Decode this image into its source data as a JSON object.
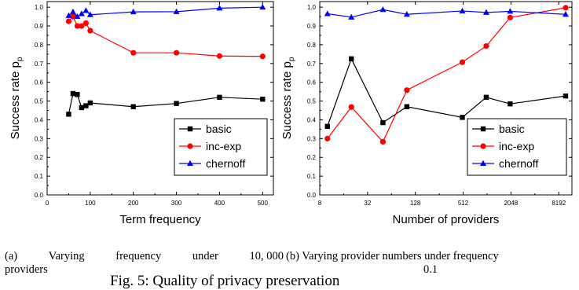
{
  "colors": {
    "basic": "#000000",
    "inc-exp": "#ff0000",
    "chernoff": "#0000ff"
  },
  "chart_data": [
    {
      "type": "line",
      "xlabel": "Term frequency",
      "ylabel": "Success rate p",
      "ylabel_sub": "p",
      "xlim": [
        0,
        525
      ],
      "ylim": [
        0,
        1.03
      ],
      "x_ticks": [
        "0",
        "100",
        "200",
        "300",
        "400",
        "500"
      ],
      "y_ticks": [
        "0.0",
        "0.1",
        "0.2",
        "0.3",
        "0.4",
        "0.5",
        "0.6",
        "0.7",
        "0.8",
        "0.9",
        "1.0"
      ],
      "legend_position": "bottom-right",
      "series": [
        {
          "name": "basic",
          "marker": "square",
          "x": [
            50,
            60,
            70,
            80,
            90,
            100,
            200,
            300,
            400,
            500
          ],
          "y": [
            0.43,
            0.54,
            0.535,
            0.465,
            0.475,
            0.49,
            0.47,
            0.487,
            0.52,
            0.51
          ]
        },
        {
          "name": "inc-exp",
          "marker": "circle",
          "x": [
            50,
            60,
            70,
            80,
            90,
            100,
            200,
            300,
            400,
            500
          ],
          "y": [
            0.925,
            0.95,
            0.9,
            0.9,
            0.915,
            0.875,
            0.757,
            0.757,
            0.74,
            0.738
          ]
        },
        {
          "name": "chernoff",
          "marker": "triangle",
          "x": [
            50,
            60,
            70,
            80,
            90,
            100,
            200,
            300,
            400,
            500
          ],
          "y": [
            0.955,
            0.975,
            0.95,
            0.965,
            0.982,
            0.96,
            0.975,
            0.976,
            0.995,
            1.0
          ]
        }
      ]
    },
    {
      "type": "line",
      "xlabel": "Number of providers",
      "ylabel": "Success rate p",
      "ylabel_sub": "p",
      "x_scale": "log2",
      "xlim": [
        8,
        12000
      ],
      "ylim": [
        0,
        1.03
      ],
      "x_ticks": [
        "8",
        "32",
        "128",
        "512",
        "2048",
        "8192"
      ],
      "y_ticks": [
        "0.0",
        "0.1",
        "0.2",
        "0.3",
        "0.4",
        "0.5",
        "0.6",
        "0.7",
        "0.8",
        "0.9",
        "1.0"
      ],
      "legend_position": "bottom-right",
      "series": [
        {
          "name": "basic",
          "marker": "square",
          "x": [
            10,
            20,
            50,
            100,
            500,
            1000,
            2000,
            10000
          ],
          "y": [
            0.365,
            0.725,
            0.385,
            0.47,
            0.413,
            0.52,
            0.485,
            0.527
          ]
        },
        {
          "name": "inc-exp",
          "marker": "circle",
          "x": [
            10,
            20,
            50,
            100,
            500,
            1000,
            2000,
            10000
          ],
          "y": [
            0.3,
            0.468,
            0.283,
            0.558,
            0.707,
            0.793,
            0.945,
            0.997
          ]
        },
        {
          "name": "chernoff",
          "marker": "triangle",
          "x": [
            10,
            20,
            50,
            100,
            500,
            1000,
            2000,
            10000
          ],
          "y": [
            0.965,
            0.947,
            0.987,
            0.962,
            0.98,
            0.972,
            0.978,
            0.962
          ]
        }
      ]
    }
  ],
  "captions": {
    "a_row1_words": [
      "(a)",
      "Varying",
      "frequency",
      "under",
      "10, 000"
    ],
    "a_row2": "providers",
    "b": "(b) Varying provider numbers under frequency",
    "b_value": "0.1"
  },
  "figure_title": "Fig. 5: Quality of privacy preservation"
}
